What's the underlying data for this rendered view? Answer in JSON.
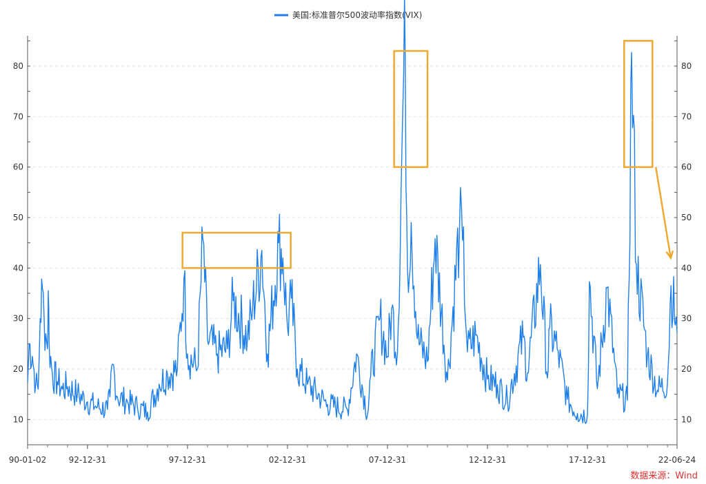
{
  "chart_data": {
    "type": "line",
    "legend": {
      "position": "top-center"
    },
    "series": [
      {
        "name": "美国:标准普尔500波动率指数(VIX)",
        "color": "#1f7fe8",
        "values": [
          [
            "1990-01-02",
            17.2
          ],
          [
            "1990-01-31",
            25.0
          ],
          [
            "1990-03-31",
            22.5
          ],
          [
            "1990-05-31",
            17.0
          ],
          [
            "1990-07-15",
            16.0
          ],
          [
            "1990-08-20",
            30.0
          ],
          [
            "1990-09-30",
            36.0
          ],
          [
            "1990-10-31",
            30.0
          ],
          [
            "1990-11-30",
            27.0
          ],
          [
            "1990-12-31",
            24.0
          ],
          [
            "1991-01-15",
            35.5
          ],
          [
            "1991-01-31",
            25.0
          ],
          [
            "1991-03-31",
            19.0
          ],
          [
            "1991-06-30",
            17.5
          ],
          [
            "1991-09-30",
            16.0
          ],
          [
            "1991-12-31",
            16.5
          ],
          [
            "1992-06-30",
            15.0
          ],
          [
            "1992-12-31",
            13.5
          ],
          [
            "1993-06-30",
            12.5
          ],
          [
            "1993-12-31",
            12.0
          ],
          [
            "1994-02-15",
            14.5
          ],
          [
            "1994-04-05",
            21.0
          ],
          [
            "1994-06-30",
            14.5
          ],
          [
            "1994-12-31",
            13.5
          ],
          [
            "1995-06-30",
            12.5
          ],
          [
            "1995-12-31",
            11.5
          ],
          [
            "1996-07-31",
            17.0
          ],
          [
            "1996-12-31",
            19.0
          ],
          [
            "1997-06-30",
            20.0
          ],
          [
            "1997-10-28",
            38.0
          ],
          [
            "1997-12-31",
            23.0
          ],
          [
            "1998-06-30",
            20.0
          ],
          [
            "1998-10-08",
            45.7
          ],
          [
            "1998-12-31",
            26.0
          ],
          [
            "1999-06-30",
            23.0
          ],
          [
            "1999-12-31",
            24.0
          ],
          [
            "2000-04-14",
            33.5
          ],
          [
            "2000-12-31",
            26.0
          ],
          [
            "2001-04-04",
            32.0
          ],
          [
            "2001-09-20",
            43.5
          ],
          [
            "2001-12-31",
            23.0
          ],
          [
            "2002-07-24",
            45.0
          ],
          [
            "2002-10-09",
            42.0
          ],
          [
            "2002-12-31",
            28.5
          ],
          [
            "2003-03-11",
            34.0
          ],
          [
            "2003-06-30",
            20.0
          ],
          [
            "2003-12-31",
            17.0
          ],
          [
            "2004-12-31",
            13.0
          ],
          [
            "2005-12-31",
            12.0
          ],
          [
            "2006-06-14",
            23.0
          ],
          [
            "2006-12-31",
            11.0
          ],
          [
            "2007-02-27",
            18.5
          ],
          [
            "2007-08-16",
            30.0
          ],
          [
            "2007-12-31",
            22.5
          ],
          [
            "2008-03-17",
            32.0
          ],
          [
            "2008-06-30",
            23.0
          ],
          [
            "2008-10-24",
            79.0
          ],
          [
            "2008-11-20",
            80.9
          ],
          [
            "2008-12-31",
            40.0
          ],
          [
            "2009-03-09",
            49.0
          ],
          [
            "2009-06-30",
            26.0
          ],
          [
            "2009-12-31",
            21.5
          ],
          [
            "2010-05-20",
            45.8
          ],
          [
            "2010-12-31",
            17.8
          ],
          [
            "2011-08-08",
            48.0
          ],
          [
            "2011-10-03",
            45.5
          ],
          [
            "2011-12-31",
            23.4
          ],
          [
            "2012-06-01",
            26.7
          ],
          [
            "2012-12-31",
            18.0
          ],
          [
            "2013-06-30",
            16.9
          ],
          [
            "2013-12-31",
            13.7
          ],
          [
            "2014-10-15",
            26.3
          ],
          [
            "2014-12-31",
            19.2
          ],
          [
            "2015-08-24",
            40.7
          ],
          [
            "2015-12-31",
            18.2
          ],
          [
            "2016-02-11",
            28.1
          ],
          [
            "2016-06-27",
            23.9
          ],
          [
            "2016-12-31",
            14.0
          ],
          [
            "2017-06-30",
            11.2
          ],
          [
            "2017-12-31",
            11.0
          ],
          [
            "2018-02-05",
            37.3
          ],
          [
            "2018-06-30",
            16.1
          ],
          [
            "2018-12-24",
            36.1
          ],
          [
            "2019-06-30",
            15.1
          ],
          [
            "2019-12-31",
            13.8
          ],
          [
            "2020-03-16",
            82.7
          ],
          [
            "2020-06-11",
            40.8
          ],
          [
            "2020-12-31",
            22.8
          ],
          [
            "2021-06-30",
            15.8
          ],
          [
            "2021-12-31",
            17.2
          ],
          [
            "2022-03-07",
            36.5
          ],
          [
            "2022-06-24",
            27.2
          ]
        ]
      }
    ],
    "x_axis": {
      "type": "date",
      "min": "1990-01-02",
      "max": "2022-06-24",
      "tick_labels": [
        "90-01-02",
        "92-12-31",
        "97-12-31",
        "02-12-31",
        "07-12-31",
        "12-12-31",
        "17-12-31",
        "22-06-24"
      ],
      "tick_dates": [
        "1990-01-02",
        "1992-12-31",
        "1997-12-31",
        "2002-12-31",
        "2007-12-31",
        "2012-12-31",
        "2017-12-31",
        "2022-06-24"
      ]
    },
    "y_axis": {
      "min": 5,
      "max": 86,
      "ticks": [
        10,
        20,
        30,
        40,
        50,
        60,
        70,
        80
      ],
      "mirrored_right": true,
      "gridlines": "dashed"
    },
    "annotations": [
      {
        "type": "box",
        "color": "#f0a830",
        "x_range": [
          "1997-10-01",
          "2003-03-01"
        ],
        "y_range": [
          40,
          47
        ]
      },
      {
        "type": "box",
        "color": "#f0a830",
        "x_range": [
          "2008-05-01",
          "2010-01-01"
        ],
        "y_range": [
          60,
          83
        ]
      },
      {
        "type": "box",
        "color": "#f0a830",
        "x_range": [
          "2019-11-01",
          "2021-04-01"
        ],
        "y_range": [
          60,
          85
        ]
      },
      {
        "type": "arrow",
        "color": "#f0a830",
        "from": [
          "2021-06-01",
          60
        ],
        "to": [
          "2022-03-01",
          42
        ]
      }
    ],
    "source": "数据来源：Wind"
  }
}
